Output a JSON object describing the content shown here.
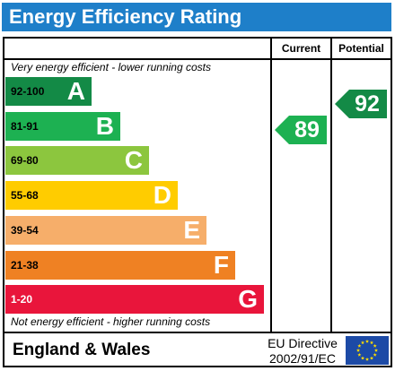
{
  "title": "Energy Efficiency Rating",
  "columns": {
    "current": "Current",
    "potential": "Potential"
  },
  "notes": {
    "top": "Very energy efficient - lower running costs",
    "bottom": "Not energy efficient - higher running costs"
  },
  "footer": {
    "country": "England & Wales",
    "directive_line1": "EU Directive",
    "directive_line2": "2002/91/EC",
    "flag_icon": "eu-flag-icon"
  },
  "chart_data": {
    "type": "bar",
    "title": "Energy Efficiency Rating",
    "categories": [
      "A",
      "B",
      "C",
      "D",
      "E",
      "F",
      "G"
    ],
    "ranges": [
      "92-100",
      "81-91",
      "69-80",
      "55-68",
      "39-54",
      "21-38",
      "1-20"
    ],
    "colors": [
      "#138a46",
      "#1db152",
      "#8cc63e",
      "#ffcc00",
      "#f6ae6a",
      "#ef8123",
      "#e9153b"
    ],
    "range_text_colors": [
      "#000000",
      "#000000",
      "#000000",
      "#000000",
      "#000000",
      "#000000",
      "#ffffff"
    ],
    "current": {
      "label": "Current",
      "value": 89,
      "band": "B",
      "color": "#1db152"
    },
    "potential": {
      "label": "Potential",
      "value": 92,
      "band": "A",
      "color": "#138a46"
    }
  }
}
